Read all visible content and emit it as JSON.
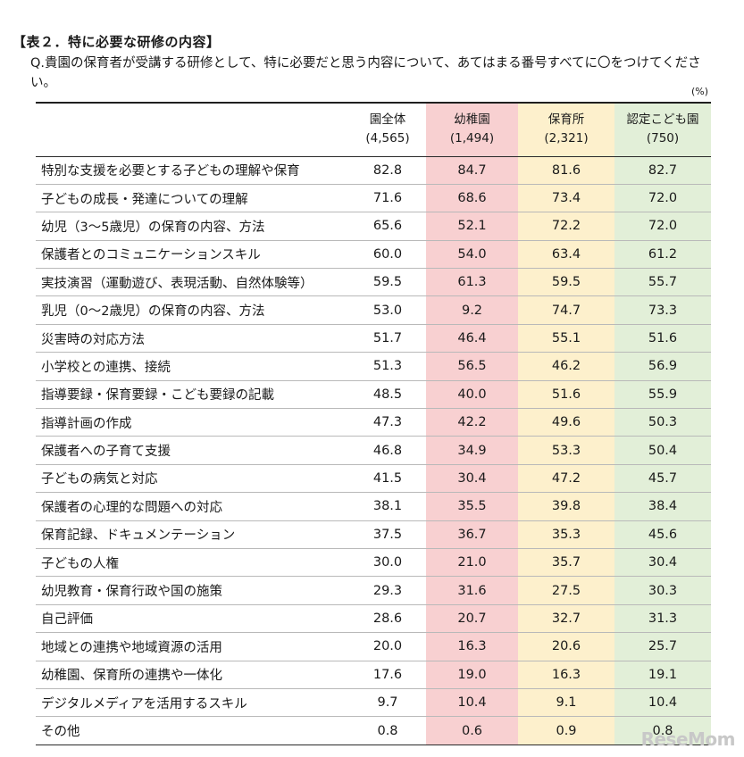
{
  "title": "【表２．特に必要な研修の内容】",
  "question": "Q.貴園の保育者が受講する研修として、特に必要だと思う内容について、あてはまる番号すべてに〇をつけてください。",
  "unit": "(%)",
  "columns": [
    {
      "name": "園全体",
      "n": "(4,565)"
    },
    {
      "name": "幼稚園",
      "n": "(1,494)"
    },
    {
      "name": "保育所",
      "n": "(2,321)"
    },
    {
      "name": "認定こども園",
      "n": "(750)"
    }
  ],
  "colors": {
    "kindergarten": "#f8d0d1",
    "nursery": "#fdf0cc",
    "certified": "#e2efd8"
  },
  "rows": [
    {
      "label": "特別な支援を必要とする子どもの理解や保育",
      "v": [
        "82.8",
        "84.7",
        "81.6",
        "82.7"
      ]
    },
    {
      "label": "子どもの成長・発達についての理解",
      "v": [
        "71.6",
        "68.6",
        "73.4",
        "72.0"
      ]
    },
    {
      "label": "幼児（3～5歳児）の保育の内容、方法",
      "v": [
        "65.6",
        "52.1",
        "72.2",
        "72.0"
      ]
    },
    {
      "label": "保護者とのコミュニケーションスキル",
      "v": [
        "60.0",
        "54.0",
        "63.4",
        "61.2"
      ]
    },
    {
      "label": "実技演習（運動遊び、表現活動、自然体験等）",
      "v": [
        "59.5",
        "61.3",
        "59.5",
        "55.7"
      ]
    },
    {
      "label": "乳児（0～2歳児）の保育の内容、方法",
      "v": [
        "53.0",
        "9.2",
        "74.7",
        "73.3"
      ]
    },
    {
      "label": "災害時の対応方法",
      "v": [
        "51.7",
        "46.4",
        "55.1",
        "51.6"
      ]
    },
    {
      "label": "小学校との連携、接続",
      "v": [
        "51.3",
        "56.5",
        "46.2",
        "56.9"
      ]
    },
    {
      "label": "指導要録・保育要録・こども要録の記載",
      "v": [
        "48.5",
        "40.0",
        "51.6",
        "55.9"
      ]
    },
    {
      "label": "指導計画の作成",
      "v": [
        "47.3",
        "42.2",
        "49.6",
        "50.3"
      ]
    },
    {
      "label": "保護者への子育て支援",
      "v": [
        "46.8",
        "34.9",
        "53.3",
        "50.4"
      ]
    },
    {
      "label": "子どもの病気と対応",
      "v": [
        "41.5",
        "30.4",
        "47.2",
        "45.7"
      ]
    },
    {
      "label": "保護者の心理的な問題への対応",
      "v": [
        "38.1",
        "35.5",
        "39.8",
        "38.4"
      ]
    },
    {
      "label": "保育記録、ドキュメンテーション",
      "v": [
        "37.5",
        "36.7",
        "35.3",
        "45.6"
      ]
    },
    {
      "label": "子どもの人権",
      "v": [
        "30.0",
        "21.0",
        "35.7",
        "30.4"
      ]
    },
    {
      "label": "幼児教育・保育行政や国の施策",
      "v": [
        "29.3",
        "31.6",
        "27.5",
        "30.3"
      ]
    },
    {
      "label": "自己評価",
      "v": [
        "28.6",
        "20.7",
        "32.7",
        "31.3"
      ]
    },
    {
      "label": "地域との連携や地域資源の活用",
      "v": [
        "20.0",
        "16.3",
        "20.6",
        "25.7"
      ]
    },
    {
      "label": "幼稚園、保育所の連携や一体化",
      "v": [
        "17.6",
        "19.0",
        "16.3",
        "19.1"
      ]
    },
    {
      "label": "デジタルメディアを活用するスキル",
      "v": [
        "9.7",
        "10.4",
        "9.1",
        "10.4"
      ]
    },
    {
      "label": "その他",
      "v": [
        "0.8",
        "0.6",
        "0.9",
        "0.8"
      ]
    }
  ],
  "watermark": "ReseMom"
}
